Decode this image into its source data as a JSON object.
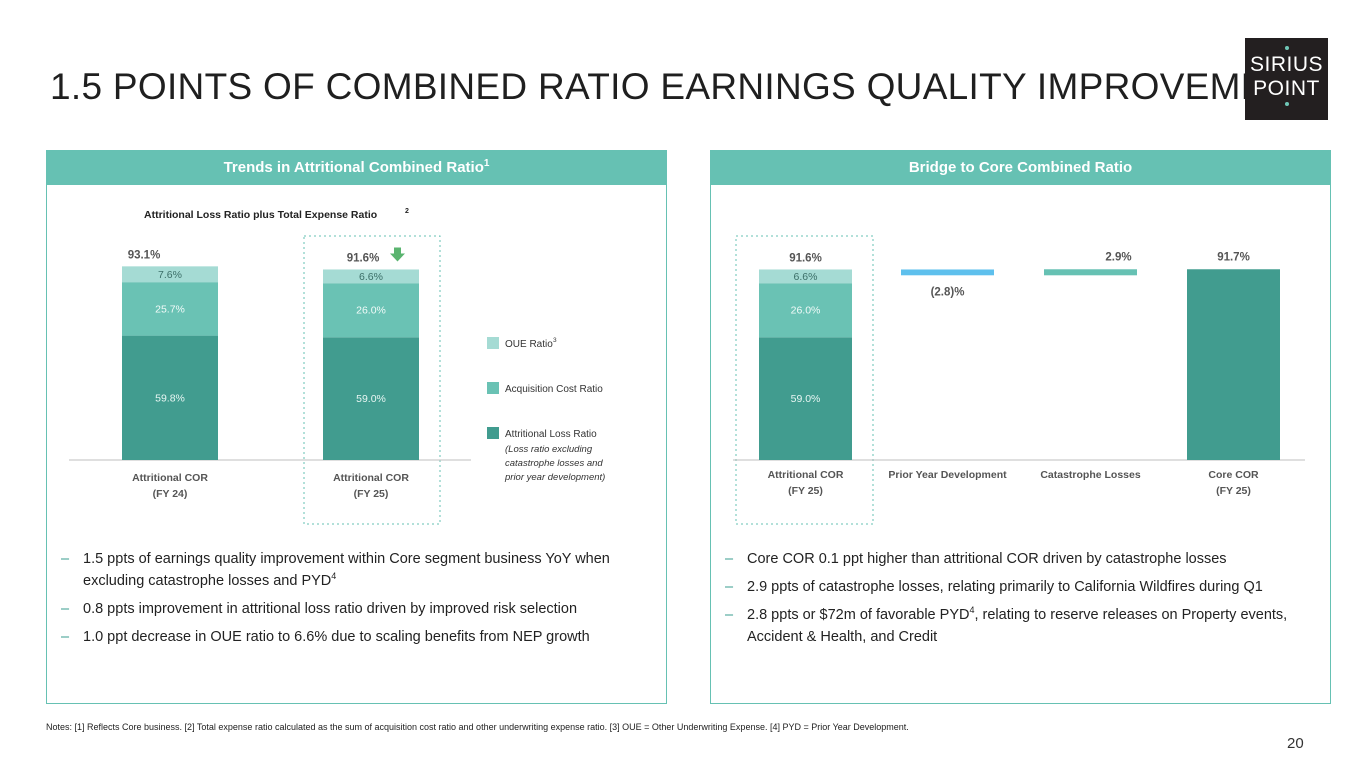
{
  "title": "1.5 POINTS OF COMBINED RATIO EARNINGS QUALITY IMPROVEMENT",
  "logo": {
    "line1": "SIRIUS",
    "line2": "POINT"
  },
  "colors": {
    "attritional_loss": "#419c8f",
    "acquisition_cost": "#6ac2b4",
    "oue": "#a5dbd4",
    "pyd": "#5ec0ed",
    "catastrophe": "#66c1b3",
    "core_cor": "#419c8f",
    "accent": "#66c1b3",
    "arrow": "#5ab46f"
  },
  "left_panel": {
    "header": "Trends in Attritional Combined Ratio",
    "header_sup": "1",
    "chart_subtitle": "Attritional Loss Ratio plus Total Expense Ratio",
    "chart_subtitle_sup": "2",
    "bullets": [
      {
        "text": "1.5 ppts of earnings quality improvement within Core segment business YoY when excluding catastrophe losses and PYD",
        "sup": "4"
      },
      {
        "text": "0.8 ppts improvement in attritional loss ratio driven by improved risk selection",
        "sup": ""
      },
      {
        "text": "1.0 ppt decrease in OUE ratio to 6.6% due to scaling benefits from NEP growth",
        "sup": ""
      }
    ]
  },
  "right_panel": {
    "header": "Bridge to Core Combined Ratio",
    "bullets": [
      {
        "text": "Core COR 0.1 ppt higher than attritional COR driven by catastrophe losses",
        "sup": "",
        "after": ""
      },
      {
        "text": "2.9 ppts of catastrophe losses, relating primarily to California Wildfires during Q1",
        "sup": "",
        "after": ""
      },
      {
        "text": "2.8 ppts or $72m of favorable PYD",
        "sup": "4",
        "after": ", relating to reserve releases on Property events, Accident & Health, and Credit"
      }
    ]
  },
  "chart_data": [
    {
      "type": "bar",
      "stacked": true,
      "title": "Attritional Loss Ratio plus Total Expense Ratio",
      "categories": [
        "Attritional COR\n(FY 24)",
        "Attritional COR\n(FY 25)"
      ],
      "series": [
        {
          "name": "Attritional Loss Ratio",
          "values": [
            59.8,
            59.0
          ],
          "labels": [
            "59.8%",
            "59.0%"
          ]
        },
        {
          "name": "Acquisition Cost Ratio",
          "values": [
            25.7,
            26.0
          ],
          "labels": [
            "25.7%",
            "26.0%"
          ]
        },
        {
          "name": "OUE Ratio",
          "values": [
            7.6,
            6.6
          ],
          "labels": [
            "7.6%",
            "6.6%"
          ]
        }
      ],
      "totals": [
        "93.1%",
        "91.6%"
      ],
      "legend": [
        {
          "label": "OUE Ratio",
          "sup": "3",
          "sub": []
        },
        {
          "label": "Acquisition Cost Ratio",
          "sup": "",
          "sub": []
        },
        {
          "label": "Attritional Loss Ratio",
          "sup": "",
          "sub": [
            "(Loss ratio excluding",
            "catastrophe losses and",
            "prior year development)"
          ]
        }
      ],
      "legend_position": "right",
      "grid": false,
      "highlight": "Attritional COR (FY 25)",
      "ylim": [
        0,
        100
      ]
    },
    {
      "type": "bar",
      "waterfall": true,
      "categories": [
        "Attritional COR\n(FY 25)",
        "Prior Year Development",
        "Catastrophe Losses",
        "Core COR\n(FY 25)"
      ],
      "stacked_start": [
        {
          "name": "Attritional Loss Ratio",
          "value": 59.0,
          "label": "59.0%"
        },
        {
          "name": "Acquisition Cost Ratio",
          "value": 26.0,
          "label": "26.0%"
        },
        {
          "name": "OUE Ratio",
          "value": 6.6,
          "label": "6.6%"
        }
      ],
      "steps": [
        {
          "category": "Prior Year Development",
          "value": -2.8,
          "label": "(2.8)%"
        },
        {
          "category": "Catastrophe Losses",
          "value": 2.9,
          "label": "2.9%"
        }
      ],
      "start_total": {
        "value": 91.6,
        "label": "91.6%"
      },
      "end_total": {
        "value": 91.7,
        "label": "91.7%"
      },
      "highlight": "Attritional COR (FY 25)",
      "grid": false,
      "ylim": [
        0,
        100
      ]
    }
  ],
  "notes": "Notes: [1] Reflects Core business. [2] Total expense ratio calculated as the sum of acquisition cost ratio and other underwriting expense ratio. [3] OUE = Other Underwriting Expense. [4] PYD = Prior Year Development.",
  "page_number": "20"
}
